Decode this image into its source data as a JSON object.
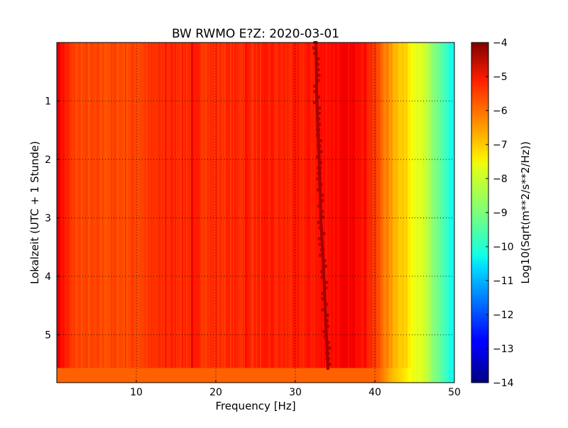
{
  "chart_data": {
    "type": "heatmap",
    "title": "BW RWMO E?Z: 2020-03-01",
    "xlabel": "Frequency [Hz]",
    "ylabel": "Lokalzeit (UTC + 1 Stunde)",
    "xlim": [
      0,
      50
    ],
    "ylim": [
      5.82,
      0
    ],
    "x_ticks": [
      10,
      20,
      30,
      40,
      50
    ],
    "y_ticks": [
      1,
      2,
      3,
      4,
      5
    ],
    "grid": true,
    "colormap": "jet",
    "colorbar": {
      "label": "Log10(Sqrt(m**2/s**2/Hz))",
      "range": [
        -14,
        -4
      ],
      "ticks": [
        -4,
        -5,
        -6,
        -7,
        -8,
        -9,
        -10,
        -11,
        -12,
        -13,
        -14
      ]
    },
    "level_profile": {
      "frequency_hz": [
        0,
        0.5,
        2,
        5,
        10,
        15,
        20,
        25,
        30,
        35,
        38,
        39.5,
        41,
        42,
        43,
        44,
        45,
        46,
        47,
        48,
        49,
        50
      ],
      "log10_amplitude": [
        -4.7,
        -5.3,
        -5.9,
        -6.0,
        -5.9,
        -5.6,
        -5.7,
        -5.6,
        -5.6,
        -5.3,
        -5.2,
        -5.6,
        -6.3,
        -6.8,
        -7.1,
        -7.4,
        -7.8,
        -8.2,
        -8.7,
        -9.2,
        -9.8,
        -10.3
      ]
    },
    "vertical_bands": [
      {
        "frequency_hz": 13.7,
        "log10_amplitude": -5.4
      },
      {
        "frequency_hz": 17.0,
        "log10_amplitude": -5.0
      },
      {
        "frequency_hz": 23.8,
        "log10_amplitude": -5.3
      },
      {
        "frequency_hz": 27.0,
        "log10_amplitude": -5.4
      }
    ],
    "peak_line": {
      "label_value": -4.4,
      "points": [
        {
          "time": 0,
          "frequency_hz": 32.6
        },
        {
          "time": 1,
          "frequency_hz": 32.7
        },
        {
          "time": 2,
          "frequency_hz": 33.0
        },
        {
          "time": 3,
          "frequency_hz": 33.2
        },
        {
          "time": 4,
          "frequency_hz": 33.6
        },
        {
          "time": 5,
          "frequency_hz": 33.9
        },
        {
          "time": 5.6,
          "frequency_hz": 34.1
        }
      ]
    },
    "bottom_band": {
      "time_range": [
        5.57,
        5.82
      ],
      "log10_amplitude": -6.0
    }
  }
}
